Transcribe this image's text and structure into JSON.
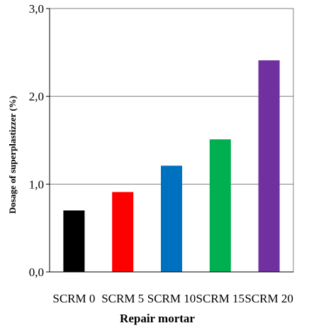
{
  "chart_data": {
    "type": "bar",
    "categories": [
      "SCRM 0",
      "SCRM 5",
      "SCRM 10",
      "SCRM 15",
      "SCRM 20"
    ],
    "values": [
      0.7,
      0.91,
      1.21,
      1.51,
      2.41
    ],
    "colors": [
      "#000000",
      "#ff0000",
      "#0070c0",
      "#00b050",
      "#7030a0"
    ],
    "xlabel": "Repair mortar",
    "ylabel": "Dosage of superplastizzer (%)",
    "ylim": [
      0,
      3
    ],
    "yticks": [
      0,
      1,
      2,
      3
    ],
    "ytick_labels": [
      "0,0",
      "1,0",
      "2,0",
      "3,0"
    ],
    "grid": true
  }
}
